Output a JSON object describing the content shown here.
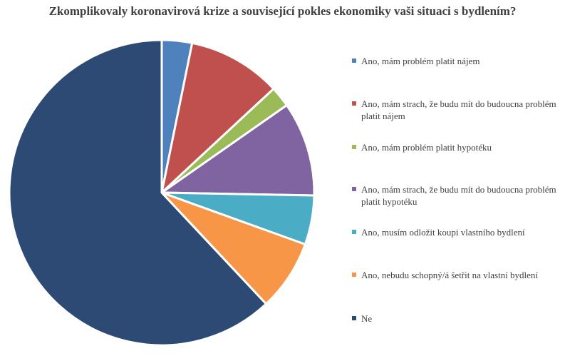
{
  "chart_data": {
    "type": "pie",
    "title": "Zkomplikovaly koronavirová krize a související pokles ekonomiky vaši situaci s bydlením?",
    "legend_position": "right",
    "categories": [
      "Ano, mám problém platit nájem",
      "Ano, mám strach, že budu mít do budoucna problém platit nájem",
      "Ano, mám problém platit hypotéku",
      "Ano, mám strach, že budu mít do budoucna problém platit hypotéku",
      "Ano, musím odložit koupi vlastního bydlení",
      "Ano, nebudu schopný/á šetřit na vlastní bydlení",
      "Ne"
    ],
    "values": [
      3.2,
      9.9,
      2.2,
      10.0,
      5.2,
      7.5,
      62.0
    ],
    "colors": [
      "#4F81BD",
      "#C0504D",
      "#9BBB59",
      "#8064A2",
      "#4BACC6",
      "#F79646",
      "#2C4A73"
    ]
  }
}
